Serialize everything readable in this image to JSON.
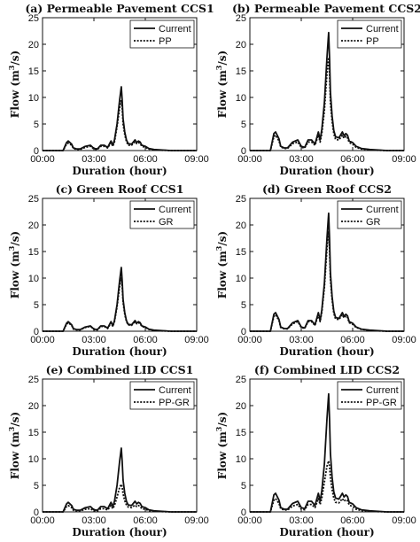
{
  "figure": {
    "x_label": "Duration (hour)",
    "y_label_prefix": "Flow (m",
    "y_label_sup": "3",
    "y_label_suffix": "/s)"
  },
  "chart_data": [
    {
      "type": "line",
      "title": "(a) Permeable Pavement CCS1",
      "xlabel": "Duration (hour)",
      "ylabel": "Flow (m3/s)",
      "x_ticks": [
        "00:00",
        "03:00",
        "06:00",
        "09:00"
      ],
      "xlim": [
        0,
        9
      ],
      "ylim": [
        0,
        25
      ],
      "y_ticks": [
        0,
        5,
        10,
        15,
        20,
        25
      ],
      "legend_position": "top-right",
      "x": [
        0,
        1.2,
        1.4,
        1.5,
        1.7,
        1.8,
        2.0,
        2.2,
        2.5,
        2.8,
        3.0,
        3.2,
        3.4,
        3.6,
        3.8,
        4.0,
        4.1,
        4.2,
        4.35,
        4.5,
        4.6,
        4.65,
        4.7,
        4.8,
        4.9,
        5.0,
        5.2,
        5.4,
        5.5,
        5.6,
        5.7,
        5.8,
        6.0,
        6.2,
        6.5,
        7.0,
        7.5,
        8.0,
        9.0
      ],
      "series": [
        {
          "name": "Current",
          "style": "solid",
          "values": [
            0,
            0,
            1.5,
            1.8,
            1.2,
            0.5,
            0.3,
            0.3,
            0.8,
            1.0,
            0.4,
            0.3,
            1.0,
            1.0,
            0.6,
            1.8,
            1.0,
            2.0,
            5.0,
            9.5,
            12.0,
            9.5,
            6.0,
            3.5,
            2.0,
            1.3,
            1.2,
            2.0,
            1.5,
            1.8,
            1.6,
            1.0,
            0.8,
            0.4,
            0.2,
            0.1,
            0,
            0,
            0
          ]
        },
        {
          "name": "PP",
          "style": "dotted",
          "values": [
            0,
            0,
            1.2,
            1.4,
            1.0,
            0.4,
            0.2,
            0.2,
            0.6,
            0.8,
            0.3,
            0.2,
            0.8,
            0.8,
            0.5,
            1.5,
            0.8,
            1.6,
            4.5,
            8.0,
            9.5,
            8.0,
            5.0,
            3.0,
            1.7,
            1.0,
            1.0,
            1.7,
            1.3,
            1.5,
            1.3,
            0.8,
            0.6,
            0.3,
            0.1,
            0.05,
            0,
            0,
            0
          ]
        }
      ]
    },
    {
      "type": "line",
      "title": "(b) Permeable Pavement CCS2",
      "xlabel": "Duration (hour)",
      "ylabel": "Flow (m3/s)",
      "x_ticks": [
        "00:00",
        "03:00",
        "06:00",
        "09:00"
      ],
      "xlim": [
        0,
        9
      ],
      "ylim": [
        0,
        25
      ],
      "y_ticks": [
        0,
        5,
        10,
        15,
        20,
        25
      ],
      "legend_position": "top-right",
      "x": [
        0,
        1.2,
        1.4,
        1.5,
        1.7,
        1.8,
        2.0,
        2.2,
        2.5,
        2.8,
        3.0,
        3.2,
        3.4,
        3.6,
        3.8,
        4.0,
        4.1,
        4.2,
        4.35,
        4.5,
        4.6,
        4.65,
        4.7,
        4.8,
        4.9,
        5.0,
        5.2,
        5.4,
        5.5,
        5.6,
        5.7,
        5.8,
        6.0,
        6.2,
        6.5,
        7.0,
        7.5,
        8.0,
        9.0
      ],
      "series": [
        {
          "name": "Current",
          "style": "solid",
          "values": [
            0,
            0,
            3.2,
            3.5,
            2.2,
            0.8,
            0.5,
            0.5,
            1.6,
            2.0,
            0.8,
            0.6,
            2.0,
            2.0,
            1.2,
            3.5,
            2.0,
            4.0,
            9.0,
            17.5,
            22.2,
            17.5,
            11.0,
            6.5,
            3.8,
            2.6,
            2.4,
            3.5,
            2.8,
            3.2,
            2.9,
            1.8,
            1.5,
            0.8,
            0.4,
            0.2,
            0.1,
            0,
            0
          ]
        },
        {
          "name": "PP",
          "style": "dotted",
          "values": [
            0,
            0,
            2.6,
            2.9,
            1.8,
            0.7,
            0.4,
            0.4,
            1.3,
            1.6,
            0.6,
            0.5,
            1.6,
            1.6,
            1.0,
            2.9,
            1.6,
            3.2,
            7.5,
            14.5,
            17.5,
            14.5,
            9.0,
            5.5,
            3.2,
            2.1,
            2.0,
            2.9,
            2.3,
            2.7,
            2.4,
            1.5,
            1.2,
            0.6,
            0.3,
            0.15,
            0.05,
            0,
            0
          ]
        }
      ]
    },
    {
      "type": "line",
      "title": "(c) Green Roof CCS1",
      "xlabel": "Duration (hour)",
      "ylabel": "Flow (m3/s)",
      "x_ticks": [
        "00:00",
        "03:00",
        "06:00",
        "09:00"
      ],
      "xlim": [
        0,
        9
      ],
      "ylim": [
        0,
        25
      ],
      "y_ticks": [
        0,
        5,
        10,
        15,
        20,
        25
      ],
      "legend_position": "top-right",
      "x": [
        0,
        1.2,
        1.4,
        1.5,
        1.7,
        1.8,
        2.0,
        2.2,
        2.5,
        2.8,
        3.0,
        3.2,
        3.4,
        3.6,
        3.8,
        4.0,
        4.1,
        4.2,
        4.35,
        4.5,
        4.6,
        4.65,
        4.7,
        4.8,
        4.9,
        5.0,
        5.2,
        5.4,
        5.5,
        5.6,
        5.7,
        5.8,
        6.0,
        6.2,
        6.5,
        7.0,
        7.5,
        8.0,
        9.0
      ],
      "series": [
        {
          "name": "Current",
          "style": "solid",
          "values": [
            0,
            0,
            1.5,
            1.8,
            1.2,
            0.5,
            0.3,
            0.3,
            0.8,
            1.0,
            0.4,
            0.3,
            1.0,
            1.0,
            0.6,
            1.8,
            1.0,
            2.0,
            5.0,
            9.5,
            12.0,
            9.5,
            6.0,
            3.5,
            2.0,
            1.3,
            1.2,
            2.0,
            1.5,
            1.8,
            1.6,
            1.0,
            0.8,
            0.4,
            0.2,
            0.1,
            0,
            0,
            0
          ]
        },
        {
          "name": "GR",
          "style": "dotted",
          "values": [
            0,
            0,
            1.3,
            1.6,
            1.1,
            0.4,
            0.25,
            0.25,
            0.7,
            0.9,
            0.35,
            0.25,
            0.9,
            0.9,
            0.5,
            1.6,
            0.9,
            1.8,
            4.6,
            8.4,
            10.0,
            8.4,
            5.4,
            3.2,
            1.8,
            1.2,
            1.1,
            1.8,
            1.4,
            1.6,
            1.4,
            0.9,
            0.7,
            0.35,
            0.15,
            0.05,
            0,
            0,
            0
          ]
        }
      ]
    },
    {
      "type": "line",
      "title": "(d) Green Roof CCS2",
      "xlabel": "Duration (hour)",
      "ylabel": "Flow (m3/s)",
      "x_ticks": [
        "00:00",
        "03:00",
        "06:00",
        "09:00"
      ],
      "xlim": [
        0,
        9
      ],
      "ylim": [
        0,
        25
      ],
      "y_ticks": [
        0,
        5,
        10,
        15,
        20,
        25
      ],
      "legend_position": "top-right",
      "x": [
        0,
        1.2,
        1.4,
        1.5,
        1.7,
        1.8,
        2.0,
        2.2,
        2.5,
        2.8,
        3.0,
        3.2,
        3.4,
        3.6,
        3.8,
        4.0,
        4.1,
        4.2,
        4.35,
        4.5,
        4.6,
        4.65,
        4.7,
        4.8,
        4.9,
        5.0,
        5.2,
        5.4,
        5.5,
        5.6,
        5.7,
        5.8,
        6.0,
        6.2,
        6.5,
        7.0,
        7.5,
        8.0,
        9.0
      ],
      "series": [
        {
          "name": "Current",
          "style": "solid",
          "values": [
            0,
            0,
            3.2,
            3.5,
            2.2,
            0.8,
            0.5,
            0.5,
            1.6,
            2.0,
            0.8,
            0.6,
            2.0,
            2.0,
            1.2,
            3.5,
            2.0,
            4.0,
            9.0,
            17.5,
            22.2,
            17.5,
            11.0,
            6.5,
            3.8,
            2.6,
            2.4,
            3.5,
            2.8,
            3.2,
            2.9,
            1.8,
            1.5,
            0.8,
            0.4,
            0.2,
            0.1,
            0,
            0
          ]
        },
        {
          "name": "GR",
          "style": "dotted",
          "values": [
            0,
            0,
            2.8,
            3.1,
            2.0,
            0.7,
            0.45,
            0.45,
            1.4,
            1.8,
            0.7,
            0.55,
            1.8,
            1.8,
            1.1,
            3.1,
            1.8,
            3.6,
            8.2,
            15.5,
            18.8,
            15.5,
            9.8,
            5.9,
            3.4,
            2.3,
            2.2,
            3.1,
            2.5,
            2.9,
            2.6,
            1.6,
            1.3,
            0.7,
            0.35,
            0.15,
            0.05,
            0,
            0
          ]
        }
      ]
    },
    {
      "type": "line",
      "title": "(e) Combined LID CCS1",
      "xlabel": "Duration (hour)",
      "ylabel": "Flow (m3/s)",
      "x_ticks": [
        "00:00",
        "03:00",
        "06:00",
        "09:00"
      ],
      "xlim": [
        0,
        9
      ],
      "ylim": [
        0,
        25
      ],
      "y_ticks": [
        0,
        5,
        10,
        15,
        20,
        25
      ],
      "legend_position": "top-right",
      "x": [
        0,
        1.2,
        1.4,
        1.5,
        1.7,
        1.8,
        2.0,
        2.2,
        2.5,
        2.8,
        3.0,
        3.2,
        3.4,
        3.6,
        3.8,
        4.0,
        4.1,
        4.2,
        4.35,
        4.5,
        4.6,
        4.65,
        4.7,
        4.8,
        4.9,
        5.0,
        5.2,
        5.4,
        5.5,
        5.6,
        5.7,
        5.8,
        6.0,
        6.2,
        6.5,
        7.0,
        7.5,
        8.0,
        9.0
      ],
      "series": [
        {
          "name": "Current",
          "style": "solid",
          "values": [
            0,
            0,
            1.5,
            1.8,
            1.2,
            0.5,
            0.3,
            0.3,
            0.8,
            1.0,
            0.4,
            0.3,
            1.0,
            1.0,
            0.6,
            1.8,
            1.0,
            2.0,
            5.0,
            9.5,
            12.0,
            9.5,
            6.0,
            3.5,
            2.0,
            1.3,
            1.2,
            2.0,
            1.5,
            1.8,
            1.6,
            1.0,
            0.8,
            0.4,
            0.2,
            0.1,
            0,
            0,
            0
          ]
        },
        {
          "name": "PP-GR",
          "style": "dotted",
          "values": [
            0,
            0,
            1.0,
            1.2,
            0.8,
            0.3,
            0.15,
            0.15,
            0.5,
            0.6,
            0.2,
            0.15,
            0.6,
            0.6,
            0.35,
            1.2,
            0.6,
            1.2,
            2.8,
            4.6,
            5.2,
            4.6,
            3.4,
            2.1,
            1.3,
            0.9,
            0.8,
            1.3,
            1.0,
            1.2,
            1.0,
            0.6,
            0.5,
            0.25,
            0.1,
            0.05,
            0,
            0,
            0
          ]
        }
      ]
    },
    {
      "type": "line",
      "title": "(f) Combined LID CCS2",
      "xlabel": "Duration (hour)",
      "ylabel": "Flow (m3/s)",
      "x_ticks": [
        "00:00",
        "03:00",
        "06:00",
        "09:00"
      ],
      "xlim": [
        0,
        9
      ],
      "ylim": [
        0,
        25
      ],
      "y_ticks": [
        0,
        5,
        10,
        15,
        20,
        25
      ],
      "legend_position": "top-right",
      "x": [
        0,
        1.2,
        1.4,
        1.5,
        1.7,
        1.8,
        2.0,
        2.2,
        2.5,
        2.8,
        3.0,
        3.2,
        3.4,
        3.6,
        3.8,
        4.0,
        4.1,
        4.2,
        4.35,
        4.5,
        4.6,
        4.65,
        4.7,
        4.8,
        4.9,
        5.0,
        5.2,
        5.4,
        5.5,
        5.6,
        5.7,
        5.8,
        6.0,
        6.2,
        6.5,
        7.0,
        7.5,
        8.0,
        9.0
      ],
      "series": [
        {
          "name": "Current",
          "style": "solid",
          "values": [
            0,
            0,
            3.2,
            3.5,
            2.2,
            0.8,
            0.5,
            0.5,
            1.6,
            2.0,
            0.8,
            0.6,
            2.0,
            2.0,
            1.2,
            3.5,
            2.0,
            4.0,
            9.0,
            17.5,
            22.2,
            17.5,
            11.0,
            6.5,
            3.8,
            2.6,
            2.4,
            3.5,
            2.8,
            3.2,
            2.9,
            1.8,
            1.5,
            0.8,
            0.4,
            0.2,
            0.1,
            0,
            0
          ]
        },
        {
          "name": "PP-GR",
          "style": "dotted",
          "values": [
            0,
            0,
            2.2,
            2.5,
            1.6,
            0.6,
            0.35,
            0.35,
            1.1,
            1.4,
            0.5,
            0.4,
            1.4,
            1.4,
            0.8,
            2.5,
            1.4,
            2.6,
            5.6,
            8.6,
            9.6,
            8.6,
            6.4,
            4.2,
            2.6,
            1.8,
            1.7,
            2.5,
            2.0,
            2.3,
            2.1,
            1.3,
            1.0,
            0.5,
            0.25,
            0.1,
            0.05,
            0,
            0
          ]
        }
      ]
    }
  ]
}
